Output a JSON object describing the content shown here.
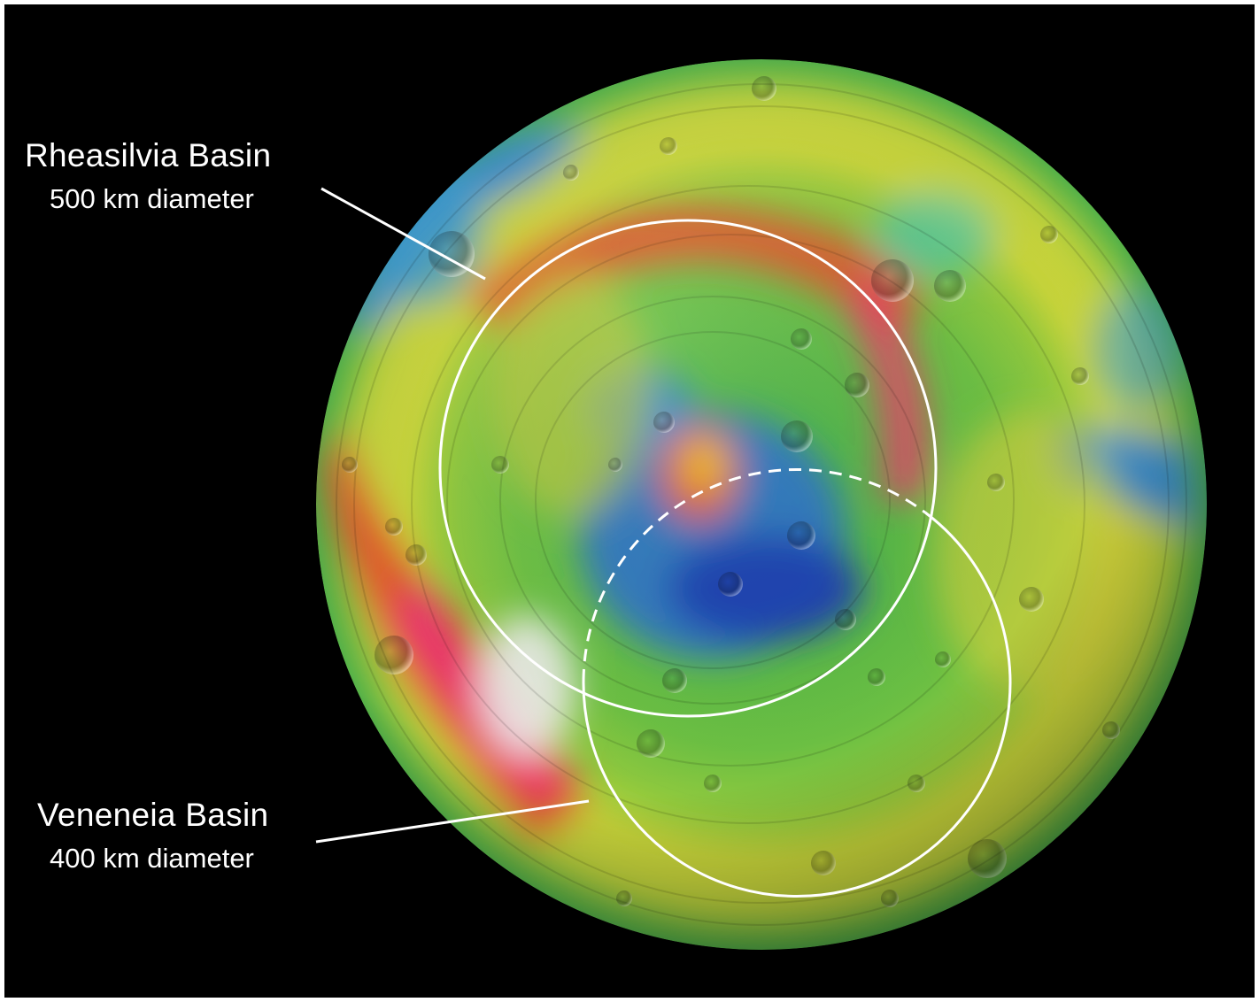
{
  "annotations": {
    "rheasilvia": {
      "name": "Rheasilvia Basin",
      "diameter": "500 km diameter"
    },
    "veneneia": {
      "name": "Veneneia Basin",
      "diameter": "400 km diameter"
    }
  },
  "colors": {
    "background": "#000000",
    "frame": "#ffffff",
    "outline": "#ffffff",
    "elevation_scale": [
      "#1a3fb0",
      "#2f86d8",
      "#3cc6c0",
      "#4fc24a",
      "#b8d63a",
      "#f2d22e",
      "#f08a22",
      "#e83a2a",
      "#ee2e7a",
      "#e8e8e8"
    ]
  }
}
